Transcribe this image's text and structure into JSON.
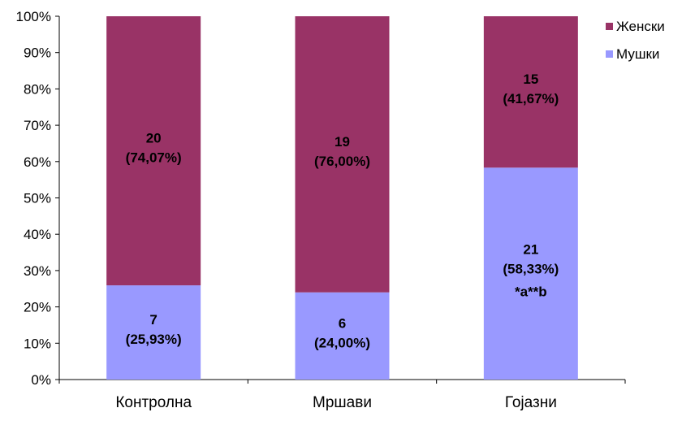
{
  "chart_data": {
    "type": "bar",
    "stacked": true,
    "percent_stacked": true,
    "categories": [
      "Контролна",
      "Мршави",
      "Гојазни"
    ],
    "series": [
      {
        "name": "Мушки",
        "color": "#9999FF",
        "values": [
          7,
          6,
          21
        ],
        "percent": [
          25.93,
          24.0,
          58.33
        ],
        "labels": [
          [
            "7",
            "(25,93%)"
          ],
          [
            "6",
            "(24,00%)"
          ],
          [
            "21",
            "(58,33%)"
          ]
        ]
      },
      {
        "name": "Женски",
        "color": "#993366",
        "values": [
          20,
          19,
          15
        ],
        "percent": [
          74.07,
          76.0,
          41.67
        ],
        "labels": [
          [
            "20",
            "(74,07%)"
          ],
          [
            "19",
            "(76,00%)"
          ],
          [
            "15",
            "(41,67%)"
          ]
        ]
      }
    ],
    "annotations": [
      {
        "category": "Гојазни",
        "text": "*a**b"
      }
    ],
    "yticks": [
      "0%",
      "10%",
      "20%",
      "30%",
      "40%",
      "50%",
      "60%",
      "70%",
      "80%",
      "90%",
      "100%"
    ],
    "ylim": [
      0,
      100
    ],
    "grid": false,
    "legend": {
      "position": "top-right",
      "order": [
        "Женски",
        "Мушки"
      ]
    }
  }
}
